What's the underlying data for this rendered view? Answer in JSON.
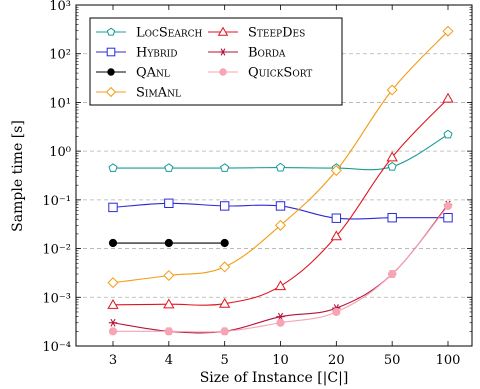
{
  "chart_data": {
    "type": "line",
    "xlabel": "Size of Instance [|C|]",
    "ylabel": "Sample time [s]",
    "ylog": true,
    "ylim": [
      0.0001,
      1000
    ],
    "categories": [
      "3",
      "4",
      "5",
      "10",
      "20",
      "50",
      "100"
    ],
    "y_tick_labels": [
      "10⁻⁴",
      "10⁻³",
      "10⁻²",
      "10⁻¹",
      "10⁰",
      "10¹",
      "10²",
      "10³"
    ],
    "grid": "horizontal dashed",
    "legend_placement": "top-left",
    "series": [
      {
        "name": "LocSearch",
        "color": "#1a9c96",
        "marker": "pentagon",
        "values": [
          0.45,
          0.45,
          0.45,
          0.46,
          0.45,
          0.48,
          2.2
        ]
      },
      {
        "name": "Hybrid",
        "color": "#2b2bd6",
        "marker": "square",
        "values": [
          0.07,
          0.085,
          0.075,
          0.075,
          0.042,
          0.043,
          0.043
        ]
      },
      {
        "name": "QAnl",
        "color": "#000000",
        "marker": "circle",
        "values": [
          0.013,
          0.013,
          0.013,
          null,
          null,
          null,
          null
        ]
      },
      {
        "name": "SimAnl",
        "color": "#f39c12",
        "marker": "diamond",
        "values": [
          0.002,
          0.0028,
          0.0042,
          0.03,
          0.4,
          18,
          290
        ]
      },
      {
        "name": "SteepDes",
        "color": "#e0141e",
        "marker": "triangle",
        "values": [
          0.0007,
          0.00072,
          0.00074,
          0.0017,
          0.018,
          0.75,
          12
        ]
      },
      {
        "name": "Borda",
        "color": "#b3123b",
        "marker": "asterisk",
        "values": [
          0.0003,
          0.0002,
          0.0002,
          0.0004,
          0.0006,
          0.003,
          0.08
        ]
      },
      {
        "name": "QuickSort",
        "color": "#f7a4b4",
        "marker": "circle",
        "values": [
          0.0002,
          0.0002,
          0.0002,
          0.0003,
          0.0005,
          0.003,
          0.075
        ]
      }
    ]
  }
}
